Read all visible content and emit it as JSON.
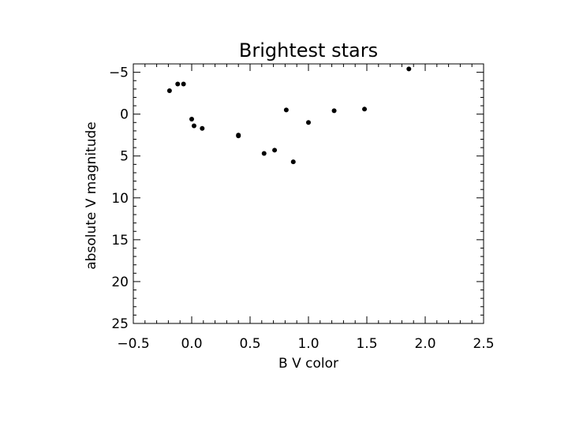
{
  "chart_data": {
    "type": "scatter",
    "title": "Brightest stars",
    "xlabel": "B  V color",
    "ylabel": "absolute V magnitude",
    "xlim": [
      -0.5,
      2.5
    ],
    "ylim": [
      25,
      -6
    ],
    "y_inverted": true,
    "xticks": [
      -0.5,
      0.0,
      0.5,
      1.0,
      1.5,
      2.0,
      2.5
    ],
    "xtick_labels": [
      "−0.5",
      "0.0",
      "0.5",
      "1.0",
      "1.5",
      "2.0",
      "2.5"
    ],
    "yticks": [
      -5,
      0,
      5,
      10,
      15,
      20,
      25
    ],
    "ytick_labels": [
      "−5",
      "0",
      "5",
      "10",
      "15",
      "20",
      "25"
    ],
    "grid": false,
    "marker_color": "#000000",
    "points": [
      {
        "x": -0.19,
        "y": -2.8
      },
      {
        "x": -0.12,
        "y": -3.6
      },
      {
        "x": -0.07,
        "y": -3.6
      },
      {
        "x": 0.0,
        "y": 0.6
      },
      {
        "x": 0.02,
        "y": 1.4
      },
      {
        "x": 0.09,
        "y": 1.7
      },
      {
        "x": 0.4,
        "y": 2.5
      },
      {
        "x": 0.4,
        "y": 2.6
      },
      {
        "x": 0.62,
        "y": 4.7
      },
      {
        "x": 0.71,
        "y": 4.3
      },
      {
        "x": 0.81,
        "y": -0.5
      },
      {
        "x": 0.87,
        "y": 5.7
      },
      {
        "x": 1.0,
        "y": 1.0
      },
      {
        "x": 1.22,
        "y": -0.4
      },
      {
        "x": 1.48,
        "y": -0.6
      },
      {
        "x": 1.86,
        "y": -5.4
      }
    ]
  }
}
